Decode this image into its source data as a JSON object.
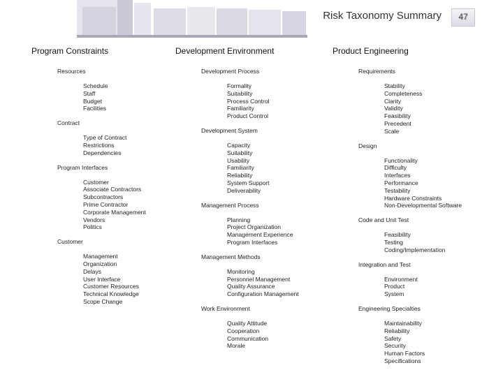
{
  "header": {
    "title": "Risk Taxonomy Summary",
    "page_number": "47"
  },
  "columns": [
    {
      "heading": "Program Constraints",
      "groups": [
        {
          "name": "Resources",
          "items": [
            "Schedule",
            "Staff",
            "Budget",
            "Facilities"
          ]
        },
        {
          "name": "Contract",
          "items": [
            "Type of Contract",
            "Restrictions",
            "Dependencies"
          ]
        },
        {
          "name": "Program Interfaces",
          "items": [
            "Customer",
            "Associate Contractors",
            "Subcontractors",
            "Prime Contractor",
            "Corporate Management",
            "Vendors",
            "Politics"
          ]
        },
        {
          "name": "Customer",
          "items": [
            "Management",
            "Organization",
            "Delays",
            "User Interface",
            "Customer Resources",
            "Technical Knowledge",
            "Scope Change"
          ]
        }
      ]
    },
    {
      "heading": "Development Environment",
      "groups": [
        {
          "name": "Development Process",
          "items": [
            "Formality",
            "Suitability",
            "Process Control",
            "Familiarity",
            "Product Control"
          ]
        },
        {
          "name": "Development System",
          "items": [
            "Capacity",
            "Suitability",
            "Usability",
            "Familiarity",
            "Reliability",
            "System Support",
            "Deliverability"
          ]
        },
        {
          "name": "Management Process",
          "items": [
            "Planning",
            "Project Organization",
            "Management Experience",
            "Program Interfaces"
          ]
        },
        {
          "name": "Management Methods",
          "items": [
            "Monitoring",
            "Personnel Management",
            "Quality Assurance",
            "Configuration Management"
          ]
        },
        {
          "name": "Work Environment",
          "items": [
            "Quality Attitude",
            "Cooperation",
            "Communication",
            "Morale"
          ]
        }
      ]
    },
    {
      "heading": "Product Engineering",
      "groups": [
        {
          "name": "Requirements",
          "items": [
            "Stability",
            "Completeness",
            "Clarity",
            "Validity",
            "Feasibility",
            "Precedent",
            "Scale"
          ]
        },
        {
          "name": "Design",
          "items": [
            "Functionality",
            "Difficulty",
            "Interfaces",
            "Performance",
            "Testability",
            "Hardware Constraints",
            "Non-Developmental Software"
          ]
        },
        {
          "name": "Code and Unit Test",
          "items": [
            "Feasibility",
            "Testing",
            "Coding/Implementation"
          ]
        },
        {
          "name": "Integration and Test",
          "items": [
            "Environment",
            "Product",
            "System"
          ]
        },
        {
          "name": "Engineering Specialties",
          "items": [
            "Maintainability",
            "Reliability",
            "Safety",
            "Security",
            "Human Factors",
            "Specifications"
          ]
        }
      ]
    }
  ]
}
